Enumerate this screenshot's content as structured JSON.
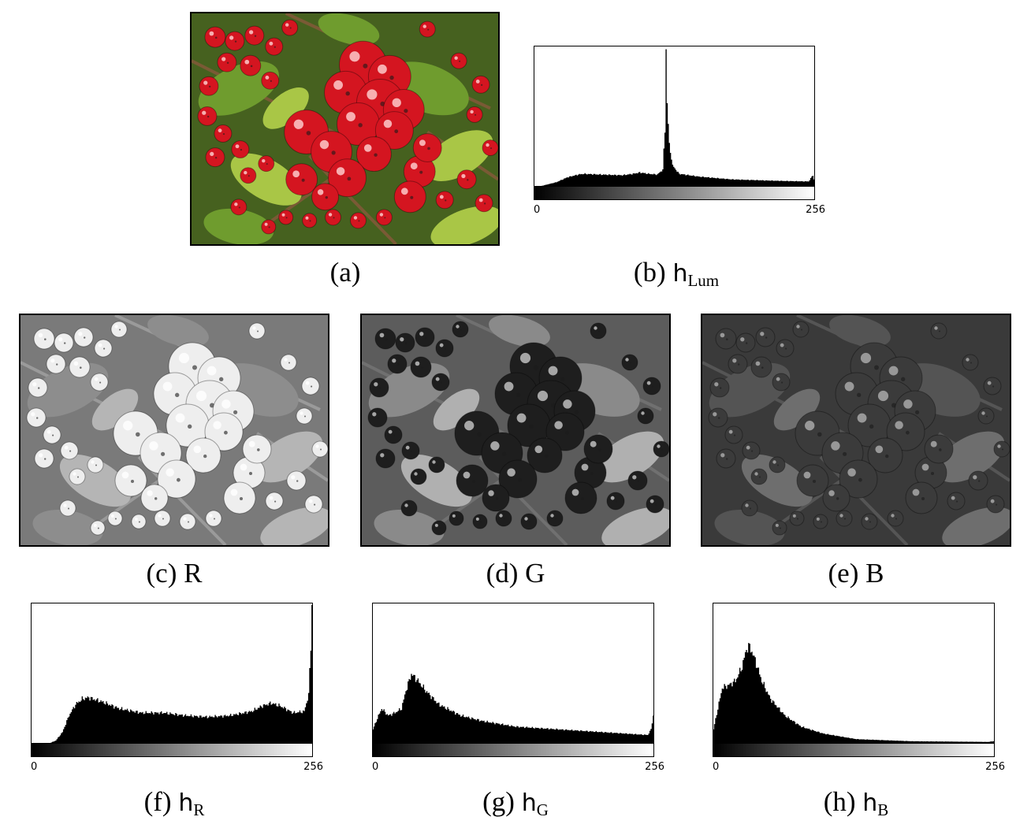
{
  "figure": {
    "panels": [
      {
        "id": "a",
        "kind": "photo",
        "channel": "color",
        "caption": {
          "label": "(a)",
          "text": ""
        }
      },
      {
        "id": "b",
        "kind": "histogram",
        "caption": {
          "label": "(b)",
          "symbol": "h",
          "sub": "Lum"
        },
        "axis": {
          "min_label": "0",
          "max_label": "256"
        },
        "histogram": {
          "bins": 256,
          "shape": [
            [
              0,
              0
            ],
            [
              5,
              0
            ],
            [
              10,
              0.01
            ],
            [
              20,
              0.03
            ],
            [
              30,
              0.065
            ],
            [
              40,
              0.085
            ],
            [
              45,
              0.09
            ],
            [
              60,
              0.085
            ],
            [
              80,
              0.08
            ],
            [
              90,
              0.09
            ],
            [
              96,
              0.1
            ],
            [
              104,
              0.09
            ],
            [
              112,
              0.085
            ],
            [
              117,
              0.12
            ],
            [
              119,
              0.4
            ],
            [
              120,
              1.0
            ],
            [
              121,
              0.6
            ],
            [
              123,
              0.3
            ],
            [
              126,
              0.15
            ],
            [
              132,
              0.09
            ],
            [
              150,
              0.07
            ],
            [
              180,
              0.05
            ],
            [
              220,
              0.04
            ],
            [
              250,
              0.035
            ],
            [
              254,
              0.08
            ],
            [
              255,
              0.05
            ]
          ]
        }
      },
      {
        "id": "c",
        "kind": "photo",
        "channel": "red",
        "caption": {
          "label": "(c)",
          "text": "R"
        }
      },
      {
        "id": "d",
        "kind": "photo",
        "channel": "green",
        "caption": {
          "label": "(d)",
          "text": "G"
        }
      },
      {
        "id": "e",
        "kind": "photo",
        "channel": "blue",
        "caption": {
          "label": "(e)",
          "text": "B"
        }
      },
      {
        "id": "f",
        "kind": "histogram",
        "caption": {
          "label": "(f)",
          "symbol": "h",
          "sub": "R"
        },
        "axis": {
          "min_label": "0",
          "max_label": "256"
        },
        "histogram": {
          "bins": 256,
          "shape": [
            [
              0,
              0
            ],
            [
              16,
              0
            ],
            [
              22,
              0.02
            ],
            [
              28,
              0.08
            ],
            [
              34,
              0.2
            ],
            [
              40,
              0.28
            ],
            [
              46,
              0.32
            ],
            [
              52,
              0.33
            ],
            [
              64,
              0.3
            ],
            [
              80,
              0.25
            ],
            [
              100,
              0.22
            ],
            [
              120,
              0.22
            ],
            [
              140,
              0.2
            ],
            [
              160,
              0.19
            ],
            [
              180,
              0.2
            ],
            [
              200,
              0.23
            ],
            [
              210,
              0.27
            ],
            [
              218,
              0.29
            ],
            [
              226,
              0.27
            ],
            [
              238,
              0.22
            ],
            [
              248,
              0.23
            ],
            [
              252,
              0.35
            ],
            [
              254,
              0.7
            ],
            [
              255,
              1.0
            ]
          ]
        }
      },
      {
        "id": "g",
        "kind": "histogram",
        "caption": {
          "label": "(g)",
          "symbol": "h",
          "sub": "G"
        },
        "axis": {
          "min_label": "0",
          "max_label": "256"
        },
        "histogram": {
          "bins": 256,
          "shape": [
            [
              0,
              0.1
            ],
            [
              4,
              0.18
            ],
            [
              8,
              0.25
            ],
            [
              14,
              0.2
            ],
            [
              20,
              0.22
            ],
            [
              26,
              0.25
            ],
            [
              30,
              0.38
            ],
            [
              35,
              0.5
            ],
            [
              40,
              0.46
            ],
            [
              48,
              0.38
            ],
            [
              60,
              0.28
            ],
            [
              80,
              0.2
            ],
            [
              100,
              0.16
            ],
            [
              130,
              0.12
            ],
            [
              170,
              0.1
            ],
            [
              210,
              0.08
            ],
            [
              250,
              0.06
            ],
            [
              253,
              0.1
            ],
            [
              255,
              0.2
            ]
          ]
        }
      },
      {
        "id": "h",
        "kind": "histogram",
        "caption": {
          "label": "(h)",
          "symbol": "h",
          "sub": "B"
        },
        "axis": {
          "min_label": "0",
          "max_label": "256"
        },
        "histogram": {
          "bins": 256,
          "shape": [
            [
              0,
              0.1
            ],
            [
              4,
              0.25
            ],
            [
              8,
              0.4
            ],
            [
              14,
              0.42
            ],
            [
              20,
              0.45
            ],
            [
              26,
              0.55
            ],
            [
              30,
              0.68
            ],
            [
              33,
              0.7
            ],
            [
              38,
              0.6
            ],
            [
              44,
              0.45
            ],
            [
              52,
              0.32
            ],
            [
              65,
              0.2
            ],
            [
              80,
              0.12
            ],
            [
              100,
              0.07
            ],
            [
              130,
              0.03
            ],
            [
              180,
              0.015
            ],
            [
              250,
              0.01
            ],
            [
              255,
              0.015
            ]
          ]
        }
      }
    ]
  }
}
